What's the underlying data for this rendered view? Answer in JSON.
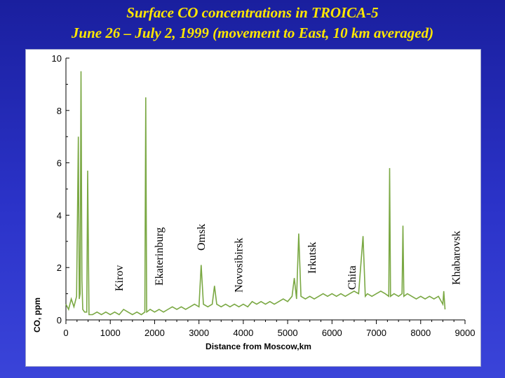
{
  "slide": {
    "title_line1": "Surface CO concentrations in TROICA-5",
    "title_line2": "June 26 – July 2, 1999 (movement to East, 10 km averaged)"
  },
  "colors": {
    "series": "#7aa843",
    "background": "#2b33c9",
    "title": "#ffe700"
  },
  "chart_data": {
    "type": "line",
    "title": "",
    "xlabel": "Distance from Moscow,km",
    "ylabel": "CO, ppm",
    "xlim": [
      0,
      9000
    ],
    "ylim": [
      0,
      10
    ],
    "xticks": [
      "0",
      "1000",
      "2000",
      "3000",
      "4000",
      "5000",
      "6000",
      "7000",
      "8000",
      "9000"
    ],
    "yticks": [
      "0",
      "2",
      "4",
      "6",
      "8",
      "10"
    ],
    "grid": false,
    "series": [
      {
        "x": [
          0,
          60,
          120,
          180,
          240,
          280,
          300,
          320,
          340,
          360,
          380,
          420,
          470,
          490,
          520,
          600,
          700,
          800,
          900,
          1000,
          1100,
          1200,
          1300,
          1400,
          1500,
          1600,
          1700,
          1780,
          1800,
          1820,
          1900,
          2000,
          2100,
          2200,
          2300,
          2400,
          2500,
          2600,
          2700,
          2800,
          2900,
          3000,
          3050,
          3100,
          3200,
          3300,
          3350,
          3400,
          3500,
          3600,
          3700,
          3800,
          3900,
          4000,
          4100,
          4200,
          4300,
          4400,
          4500,
          4600,
          4700,
          4800,
          4900,
          5000,
          5100,
          5150,
          5200,
          5250,
          5300,
          5400,
          5500,
          5600,
          5700,
          5800,
          5900,
          6000,
          6100,
          6200,
          6300,
          6400,
          6500,
          6600,
          6700,
          6750,
          6800,
          6900,
          7000,
          7100,
          7200,
          7280,
          7300,
          7320,
          7400,
          7500,
          7580,
          7600,
          7620,
          7700,
          7800,
          7900,
          8000,
          8100,
          8200,
          8300,
          8400,
          8500,
          8520,
          8550
        ],
        "y": [
          0.6,
          0.4,
          0.8,
          0.5,
          0.9,
          7.0,
          0.8,
          1.0,
          9.5,
          1.5,
          0.4,
          0.3,
          0.3,
          5.7,
          0.2,
          0.2,
          0.3,
          0.2,
          0.3,
          0.2,
          0.3,
          0.2,
          0.4,
          0.3,
          0.2,
          0.3,
          0.2,
          0.3,
          8.5,
          0.3,
          0.4,
          0.3,
          0.4,
          0.3,
          0.4,
          0.5,
          0.4,
          0.5,
          0.4,
          0.5,
          0.6,
          0.5,
          2.1,
          0.6,
          0.5,
          0.6,
          1.3,
          0.6,
          0.5,
          0.6,
          0.5,
          0.6,
          0.5,
          0.6,
          0.5,
          0.7,
          0.6,
          0.7,
          0.6,
          0.7,
          0.6,
          0.7,
          0.8,
          0.7,
          0.9,
          1.6,
          0.8,
          3.3,
          0.9,
          0.8,
          0.9,
          0.8,
          0.9,
          1.0,
          0.9,
          1.0,
          0.9,
          1.0,
          0.9,
          1.0,
          1.1,
          1.0,
          3.2,
          0.9,
          1.0,
          0.9,
          1.0,
          1.1,
          1.0,
          0.9,
          5.8,
          0.9,
          1.0,
          0.9,
          1.0,
          3.6,
          0.9,
          1.0,
          0.9,
          0.8,
          0.9,
          0.8,
          0.9,
          0.8,
          0.9,
          0.6,
          1.1,
          0.4
        ]
      }
    ],
    "annotations": [
      {
        "text": "Kirov",
        "x": 1200
      },
      {
        "text": "Ekaterinburg",
        "x": 2100
      },
      {
        "text": "Omsk",
        "x": 3050
      },
      {
        "text": "Novosibirsk",
        "x": 3900
      },
      {
        "text": "Irkutsk",
        "x": 5550
      },
      {
        "text": "Chita",
        "x": 6450
      },
      {
        "text": "Khabarovsk",
        "x": 8800
      }
    ]
  }
}
